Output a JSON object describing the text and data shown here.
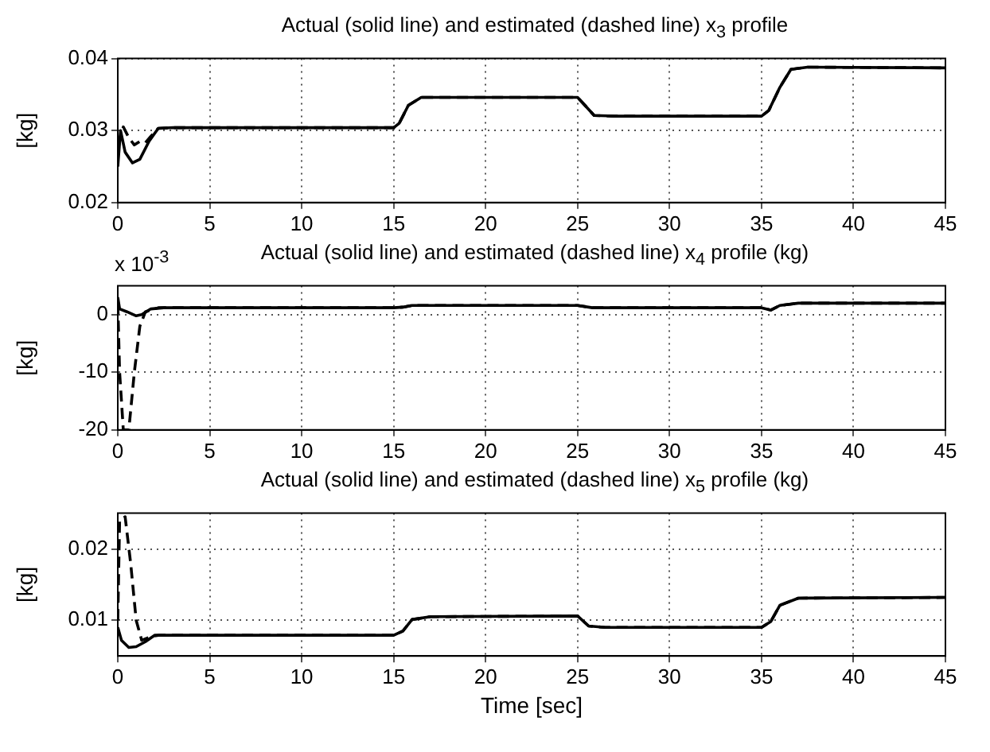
{
  "chart_data": [
    {
      "type": "line",
      "title": "Actual (solid line) and estimated (dashed line) x$_{3}$ profile",
      "ylabel": "[kg]",
      "xlim": [
        0,
        45
      ],
      "xticks": [
        0,
        5,
        10,
        15,
        20,
        25,
        30,
        35,
        40,
        45
      ],
      "ylim": [
        0.02,
        0.04
      ],
      "yticks": [
        0.02,
        0.03,
        0.04
      ],
      "grid": true,
      "series": [
        {
          "color": "#000000",
          "line_style": "solid",
          "x": [
            0,
            0.15,
            0.4,
            0.8,
            1.2,
            1.7,
            2.2,
            3,
            15,
            15.3,
            15.8,
            16.5,
            25,
            25.4,
            25.9,
            27,
            35,
            35.4,
            36,
            36.6,
            37.5,
            45
          ],
          "values": [
            0.025,
            0.03,
            0.027,
            0.0255,
            0.026,
            0.0285,
            0.0303,
            0.0304,
            0.0304,
            0.031,
            0.0335,
            0.0346,
            0.0346,
            0.0335,
            0.0321,
            0.032,
            0.032,
            0.0328,
            0.036,
            0.0385,
            0.0388,
            0.0387
          ]
        },
        {
          "color": "#000000",
          "line_style": "dashed",
          "x": [
            0,
            0.3,
            0.6,
            0.9,
            1.2,
            1.5,
            1.8,
            2.2,
            3,
            15,
            15.3,
            15.8,
            16.5,
            25,
            25.4,
            25.9,
            27,
            35,
            35.4,
            36,
            36.6,
            37.5,
            45
          ],
          "values": [
            0.028,
            0.0305,
            0.029,
            0.028,
            0.0285,
            0.0283,
            0.0292,
            0.0303,
            0.0304,
            0.0304,
            0.031,
            0.0335,
            0.0346,
            0.0346,
            0.0335,
            0.0321,
            0.032,
            0.032,
            0.0328,
            0.036,
            0.0385,
            0.0388,
            0.0387
          ]
        }
      ]
    },
    {
      "type": "line",
      "title": "Actual (solid line) and estimated (dashed line) x$_{4}$ profile (kg)",
      "ylabel": "[kg]",
      "annotations": [
        "x 10$^{-3}$"
      ],
      "xlim": [
        0,
        45
      ],
      "xticks": [
        0,
        5,
        10,
        15,
        20,
        25,
        30,
        35,
        40,
        45
      ],
      "ylim": [
        -20,
        5
      ],
      "yticks": [
        -20,
        -10,
        0
      ],
      "grid": true,
      "series": [
        {
          "color": "#000000",
          "line_style": "solid",
          "x": [
            0,
            0.1,
            0.5,
            1,
            1.3,
            1.8,
            2.5,
            15,
            15.5,
            16,
            25,
            25.8,
            35,
            35.5,
            36,
            37,
            45
          ],
          "values": [
            3,
            1,
            0.5,
            -0.2,
            0,
            1,
            1.2,
            1.2,
            1.3,
            1.6,
            1.6,
            1.2,
            1.2,
            0.8,
            1.6,
            2,
            2
          ]
        },
        {
          "color": "#000000",
          "line_style": "dashed",
          "x": [
            0,
            0.1,
            0.3,
            0.6,
            0.9,
            1.2,
            1.5,
            2.2,
            15,
            15.5,
            16,
            25,
            25.8,
            35,
            35.5,
            36,
            37,
            45
          ],
          "values": [
            2,
            -10,
            -20,
            -20,
            -10,
            -2,
            0.5,
            1.2,
            1.2,
            1.3,
            1.6,
            1.6,
            1.2,
            1.2,
            0.8,
            1.6,
            2,
            2
          ]
        }
      ]
    },
    {
      "type": "line",
      "title": "Actual (solid line) and estimated (dashed line) x$_{5}$ profile (kg)",
      "xlabel": "Time [sec]",
      "ylabel": "[kg]",
      "xlim": [
        0,
        45
      ],
      "xticks": [
        0,
        5,
        10,
        15,
        20,
        25,
        30,
        35,
        40,
        45
      ],
      "ylim": [
        0.005,
        0.025
      ],
      "yticks": [
        0.01,
        0.02
      ],
      "grid": true,
      "series": [
        {
          "color": "#000000",
          "line_style": "solid",
          "x": [
            0,
            0.2,
            0.6,
            1,
            1.5,
            2,
            15,
            15.5,
            16,
            17,
            25,
            25.6,
            26.5,
            35,
            35.5,
            36,
            37,
            45
          ],
          "values": [
            0.009,
            0.0072,
            0.0062,
            0.0063,
            0.007,
            0.0079,
            0.0079,
            0.0085,
            0.0101,
            0.0105,
            0.0106,
            0.0092,
            0.009,
            0.009,
            0.0098,
            0.0121,
            0.0131,
            0.0132
          ]
        },
        {
          "color": "#000000",
          "line_style": "dashed",
          "x": [
            0,
            0.1,
            0.4,
            0.7,
            1,
            1.3,
            1.8,
            2.2,
            15,
            15.5,
            16,
            17,
            25,
            25.6,
            26.5,
            35,
            35.5,
            36,
            37,
            45
          ],
          "values": [
            0.01,
            0.024,
            0.0245,
            0.018,
            0.01,
            0.0072,
            0.0077,
            0.0079,
            0.0079,
            0.0085,
            0.0101,
            0.0105,
            0.0106,
            0.0092,
            0.009,
            0.009,
            0.0098,
            0.0121,
            0.0131,
            0.0132
          ]
        }
      ]
    }
  ]
}
